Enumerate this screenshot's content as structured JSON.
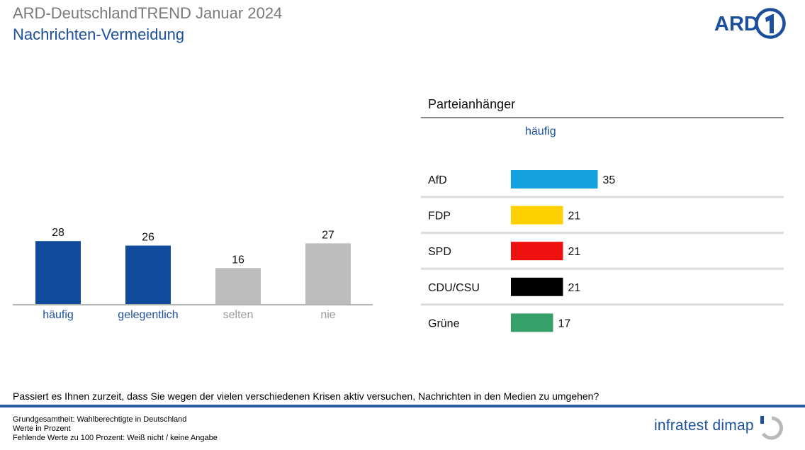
{
  "header": {
    "title": "ARD-DeutschlandTREND Januar 2024",
    "subtitle": "Nachrichten-Vermeidung",
    "logo_text": "ARD"
  },
  "colors": {
    "primary_blue": "#0f4a9c",
    "grey_bar": "#bdbdbd",
    "label_blue": "#1c4f9c",
    "label_grey": "#9a9a9a"
  },
  "chart_data": [
    {
      "type": "bar",
      "categories": [
        "häufig",
        "gelegentlich",
        "selten",
        "nie"
      ],
      "values": [
        28,
        26,
        16,
        27
      ],
      "bar_colors": [
        "#0f4a9c",
        "#0f4a9c",
        "#bdbdbd",
        "#bdbdbd"
      ],
      "label_colors": [
        "#1c4f9c",
        "#1c4f9c",
        "#9a9a9a",
        "#9a9a9a"
      ],
      "ylim": [
        0,
        35
      ],
      "grid": false
    },
    {
      "type": "bar",
      "orientation": "horizontal",
      "title": "Parteianhänger",
      "column_label": "häufig",
      "categories": [
        "AfD",
        "FDP",
        "SPD",
        "CDU/CSU",
        "Grüne"
      ],
      "values": [
        35,
        21,
        21,
        21,
        17
      ],
      "bar_colors": [
        "#15a0e0",
        "#ffd000",
        "#ee0f0f",
        "#000000",
        "#36a06a"
      ],
      "xlim": [
        0,
        100
      ]
    }
  ],
  "question": "Passiert es Ihnen zurzeit, dass Sie wegen der vielen verschiedenen Krisen aktiv versuchen, Nachrichten in den Medien zu umgehen?",
  "footer": {
    "lines": [
      "Grundgesamtheit: Wahlberechtigte in Deutschland",
      "Werte in Prozent",
      "Fehlende Werte zu 100 Prozent: Weiß nicht / keine Angabe"
    ],
    "brand": "infratest dimap"
  }
}
